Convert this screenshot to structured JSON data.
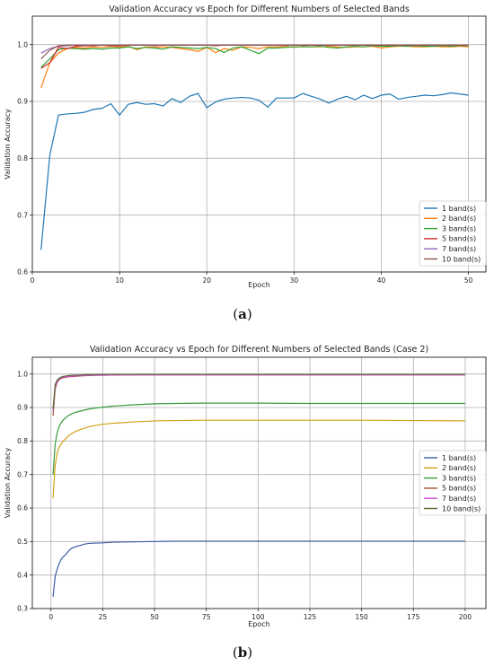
{
  "chart_data": [
    {
      "type": "line",
      "title": "Validation Accuracy vs Epoch for Different Numbers of Selected Bands",
      "xlabel": "Epoch",
      "ylabel": "Validation Accuracy",
      "xlim": [
        0,
        52
      ],
      "ylim": [
        0.6,
        1.05
      ],
      "xticks": [
        0,
        10,
        20,
        30,
        40,
        50
      ],
      "yticks": [
        0.6,
        0.7,
        0.8,
        0.9,
        1.0
      ],
      "grid": true,
      "legend_position": "lower-right",
      "caption_label": "a",
      "series": [
        {
          "name": "1 band(s)",
          "color": "#1f77b4",
          "x": [
            1,
            2,
            3,
            4,
            5,
            6,
            7,
            8,
            9,
            10,
            11,
            12,
            13,
            14,
            15,
            16,
            17,
            18,
            19,
            20,
            21,
            22,
            23,
            24,
            25,
            26,
            27,
            28,
            29,
            30,
            31,
            32,
            33,
            34,
            35,
            36,
            37,
            38,
            39,
            40,
            41,
            42,
            43,
            44,
            45,
            46,
            47,
            48,
            49,
            50
          ],
          "y": [
            0.639,
            0.805,
            0.876,
            0.878,
            0.879,
            0.881,
            0.886,
            0.888,
            0.896,
            0.876,
            0.895,
            0.898,
            0.895,
            0.896,
            0.892,
            0.905,
            0.898,
            0.909,
            0.914,
            0.889,
            0.899,
            0.904,
            0.906,
            0.907,
            0.906,
            0.902,
            0.89,
            0.906,
            0.906,
            0.906,
            0.914,
            0.909,
            0.904,
            0.897,
            0.904,
            0.909,
            0.903,
            0.911,
            0.905,
            0.911,
            0.913,
            0.904,
            0.907,
            0.909,
            0.911,
            0.91,
            0.912,
            0.915,
            0.913,
            0.911
          ]
        },
        {
          "name": "2 band(s)",
          "color": "#ff7f0e",
          "x": [
            1,
            2,
            3,
            4,
            5,
            6,
            7,
            8,
            9,
            10,
            11,
            12,
            13,
            14,
            15,
            16,
            17,
            18,
            19,
            20,
            21,
            22,
            23,
            24,
            25,
            26,
            27,
            28,
            29,
            30,
            31,
            32,
            33,
            34,
            35,
            36,
            37,
            38,
            39,
            40,
            41,
            42,
            43,
            44,
            45,
            46,
            47,
            48,
            49,
            50
          ],
          "y": [
            0.924,
            0.968,
            0.985,
            0.993,
            0.995,
            0.994,
            0.996,
            0.995,
            0.997,
            0.996,
            0.997,
            0.991,
            0.996,
            0.995,
            0.996,
            0.995,
            0.993,
            0.991,
            0.988,
            0.995,
            0.986,
            0.993,
            0.99,
            0.996,
            0.995,
            0.993,
            0.996,
            0.996,
            0.997,
            0.995,
            0.997,
            0.996,
            0.996,
            0.997,
            0.996,
            0.995,
            0.996,
            0.996,
            0.997,
            0.994,
            0.996,
            0.997,
            0.997,
            0.996,
            0.996,
            0.997,
            0.996,
            0.996,
            0.997,
            0.996
          ]
        },
        {
          "name": "3 band(s)",
          "color": "#2ca02c",
          "x": [
            1,
            2,
            3,
            4,
            5,
            6,
            7,
            8,
            9,
            10,
            11,
            12,
            13,
            14,
            15,
            16,
            17,
            18,
            19,
            20,
            21,
            22,
            23,
            24,
            25,
            26,
            27,
            28,
            29,
            30,
            31,
            32,
            33,
            34,
            35,
            36,
            37,
            38,
            39,
            40,
            41,
            42,
            43,
            44,
            45,
            46,
            47,
            48,
            49,
            50
          ],
          "y": [
            0.96,
            0.975,
            0.991,
            0.994,
            0.993,
            0.992,
            0.993,
            0.992,
            0.994,
            0.994,
            0.996,
            0.993,
            0.995,
            0.994,
            0.992,
            0.996,
            0.995,
            0.994,
            0.993,
            0.995,
            0.993,
            0.986,
            0.994,
            0.996,
            0.99,
            0.984,
            0.994,
            0.994,
            0.995,
            0.996,
            0.996,
            0.996,
            0.997,
            0.995,
            0.994,
            0.996,
            0.997,
            0.996,
            0.998,
            0.997,
            0.997,
            0.998,
            0.997,
            0.998,
            0.997,
            0.997,
            0.998,
            0.997,
            0.998,
            0.998
          ]
        },
        {
          "name": "5 band(s)",
          "color": "#d62728",
          "x": [
            1,
            2,
            3,
            4,
            5,
            6,
            7,
            8,
            9,
            10,
            11,
            12,
            13,
            14,
            15,
            16,
            17,
            18,
            19,
            20,
            21,
            22,
            23,
            24,
            25,
            26,
            27,
            28,
            29,
            30,
            31,
            32,
            33,
            34,
            35,
            36,
            37,
            38,
            39,
            40,
            41,
            42,
            43,
            44,
            45,
            46,
            47,
            48,
            49,
            50
          ],
          "y": [
            0.958,
            0.968,
            0.995,
            0.993,
            0.997,
            0.998,
            0.998,
            0.999,
            0.998,
            0.998,
            0.999,
            0.999,
            0.999,
            0.998,
            0.999,
            0.999,
            0.999,
            0.999,
            0.999,
            0.999,
            0.998,
            0.999,
            0.999,
            0.999,
            0.999,
            0.999,
            0.999,
            0.999,
            0.999,
            0.999,
            0.999,
            0.999,
            0.999,
            0.999,
            0.999,
            0.999,
            0.999,
            0.999,
            0.999,
            0.999,
            0.999,
            0.999,
            0.999,
            0.999,
            0.999,
            0.999,
            0.999,
            0.999,
            0.999,
            0.999
          ]
        },
        {
          "name": "7 band(s)",
          "color": "#9467bd",
          "x": [
            1,
            2,
            3,
            4,
            5,
            6,
            7,
            8,
            9,
            10,
            11,
            12,
            13,
            14,
            15,
            16,
            17,
            18,
            19,
            20,
            21,
            22,
            23,
            24,
            25,
            26,
            27,
            28,
            29,
            30,
            31,
            32,
            33,
            34,
            35,
            36,
            37,
            38,
            39,
            40,
            41,
            42,
            43,
            44,
            45,
            46,
            47,
            48,
            49,
            50
          ],
          "y": [
            0.985,
            0.993,
            0.997,
            0.998,
            0.999,
            0.999,
            0.999,
            0.999,
            0.999,
            0.999,
            0.999,
            0.999,
            0.999,
            0.999,
            0.999,
            0.999,
            0.999,
            0.999,
            0.999,
            0.999,
            0.999,
            0.999,
            0.999,
            0.999,
            0.999,
            0.999,
            0.999,
            0.999,
            0.999,
            0.999,
            0.999,
            0.999,
            0.999,
            0.999,
            0.999,
            0.999,
            0.999,
            0.999,
            0.999,
            0.999,
            0.999,
            0.999,
            0.999,
            0.999,
            0.999,
            0.999,
            0.999,
            0.999,
            0.999,
            0.999
          ]
        },
        {
          "name": "10 band(s)",
          "color": "#8c564b",
          "x": [
            1,
            2,
            3,
            4,
            5,
            6,
            7,
            8,
            9,
            10,
            11,
            12,
            13,
            14,
            15,
            16,
            17,
            18,
            19,
            20,
            21,
            22,
            23,
            24,
            25,
            26,
            27,
            28,
            29,
            30,
            31,
            32,
            33,
            34,
            35,
            36,
            37,
            38,
            39,
            40,
            41,
            42,
            43,
            44,
            45,
            46,
            47,
            48,
            49,
            50
          ],
          "y": [
            0.975,
            0.99,
            0.998,
            0.999,
            0.999,
            0.999,
            0.999,
            0.999,
            0.999,
            0.999,
            0.999,
            0.999,
            0.999,
            0.999,
            0.999,
            0.999,
            0.999,
            0.999,
            0.999,
            0.999,
            0.999,
            0.999,
            0.999,
            0.999,
            0.999,
            0.999,
            0.999,
            0.999,
            0.999,
            0.999,
            0.999,
            0.999,
            0.999,
            0.999,
            0.999,
            0.999,
            0.999,
            0.999,
            0.999,
            0.999,
            0.999,
            0.999,
            0.999,
            0.999,
            0.999,
            0.999,
            0.999,
            0.999,
            0.999,
            0.999
          ]
        }
      ]
    },
    {
      "type": "line",
      "title": "Validation Accuracy vs Epoch for Different Numbers of Selected Bands (Case 2)",
      "xlabel": "Epoch",
      "ylabel": "Validation Accuracy",
      "xlim": [
        -9,
        210
      ],
      "ylim": [
        0.3,
        1.05
      ],
      "xticks": [
        0,
        25,
        50,
        75,
        100,
        125,
        150,
        175,
        200
      ],
      "yticks": [
        0.3,
        0.4,
        0.5,
        0.6,
        0.7,
        0.8,
        0.9,
        1.0
      ],
      "grid": true,
      "legend_position": "center-right",
      "caption_label": "b",
      "series": [
        {
          "name": "1 band(s)",
          "color": "#3a5ca6",
          "x": [
            1,
            2,
            3,
            4,
            5,
            6,
            7,
            8,
            9,
            10,
            12,
            14,
            16,
            18,
            20,
            25,
            30,
            40,
            50,
            60,
            75,
            100,
            125,
            150,
            175,
            200
          ],
          "y": [
            0.335,
            0.395,
            0.418,
            0.435,
            0.448,
            0.455,
            0.46,
            0.468,
            0.475,
            0.48,
            0.485,
            0.488,
            0.492,
            0.494,
            0.495,
            0.496,
            0.498,
            0.499,
            0.5,
            0.501,
            0.501,
            0.501,
            0.501,
            0.501,
            0.501,
            0.501
          ]
        },
        {
          "name": "2 band(s)",
          "color": "#d4a017",
          "x": [
            1,
            2,
            3,
            4,
            5,
            6,
            7,
            8,
            9,
            10,
            12,
            14,
            16,
            18,
            20,
            25,
            30,
            40,
            50,
            60,
            75,
            100,
            125,
            150,
            175,
            200
          ],
          "y": [
            0.63,
            0.725,
            0.765,
            0.782,
            0.792,
            0.8,
            0.806,
            0.812,
            0.818,
            0.822,
            0.829,
            0.834,
            0.838,
            0.842,
            0.845,
            0.85,
            0.853,
            0.857,
            0.86,
            0.861,
            0.862,
            0.862,
            0.862,
            0.862,
            0.861,
            0.86
          ]
        },
        {
          "name": "3 band(s)",
          "color": "#3a9a3a",
          "x": [
            1,
            2,
            3,
            4,
            5,
            6,
            7,
            8,
            9,
            10,
            12,
            14,
            16,
            18,
            20,
            25,
            30,
            40,
            50,
            60,
            75,
            100,
            125,
            150,
            175,
            200
          ],
          "y": [
            0.7,
            0.79,
            0.825,
            0.845,
            0.855,
            0.863,
            0.869,
            0.874,
            0.878,
            0.881,
            0.886,
            0.889,
            0.892,
            0.895,
            0.897,
            0.901,
            0.904,
            0.908,
            0.911,
            0.912,
            0.913,
            0.913,
            0.912,
            0.912,
            0.912,
            0.912
          ]
        },
        {
          "name": "5 band(s)",
          "color": "#a0522d",
          "x": [
            1,
            2,
            3,
            4,
            5,
            6,
            7,
            8,
            9,
            10,
            12,
            14,
            16,
            18,
            20,
            25,
            30,
            40,
            50,
            60,
            75,
            100,
            125,
            150,
            175,
            200
          ],
          "y": [
            0.875,
            0.955,
            0.975,
            0.983,
            0.987,
            0.989,
            0.99,
            0.991,
            0.992,
            0.992,
            0.993,
            0.994,
            0.995,
            0.995,
            0.996,
            0.997,
            0.997,
            0.998,
            0.998,
            0.998,
            0.998,
            0.998,
            0.998,
            0.998,
            0.998,
            0.998
          ]
        },
        {
          "name": "7 band(s)",
          "color": "#d147c8",
          "x": [
            1,
            2,
            3,
            4,
            5,
            6,
            7,
            8,
            9,
            10,
            12,
            14,
            16,
            18,
            20,
            25,
            30,
            40,
            50,
            60,
            75,
            100,
            125,
            150,
            175,
            200
          ],
          "y": [
            0.89,
            0.96,
            0.977,
            0.984,
            0.988,
            0.99,
            0.991,
            0.992,
            0.993,
            0.993,
            0.994,
            0.995,
            0.995,
            0.996,
            0.996,
            0.996,
            0.997,
            0.997,
            0.997,
            0.997,
            0.997,
            0.997,
            0.997,
            0.997,
            0.997,
            0.997
          ]
        },
        {
          "name": "10 band(s)",
          "color": "#556b2f",
          "x": [
            1,
            2,
            3,
            4,
            5,
            6,
            7,
            8,
            9,
            10,
            12,
            14,
            16,
            18,
            20,
            25,
            30,
            40,
            50,
            60,
            75,
            100,
            125,
            150,
            175,
            200
          ],
          "y": [
            0.895,
            0.968,
            0.982,
            0.988,
            0.991,
            0.993,
            0.994,
            0.995,
            0.996,
            0.996,
            0.997,
            0.997,
            0.998,
            0.998,
            0.998,
            0.999,
            0.999,
            0.999,
            0.999,
            0.999,
            0.999,
            0.999,
            0.999,
            0.999,
            0.999,
            0.999
          ]
        }
      ]
    }
  ]
}
